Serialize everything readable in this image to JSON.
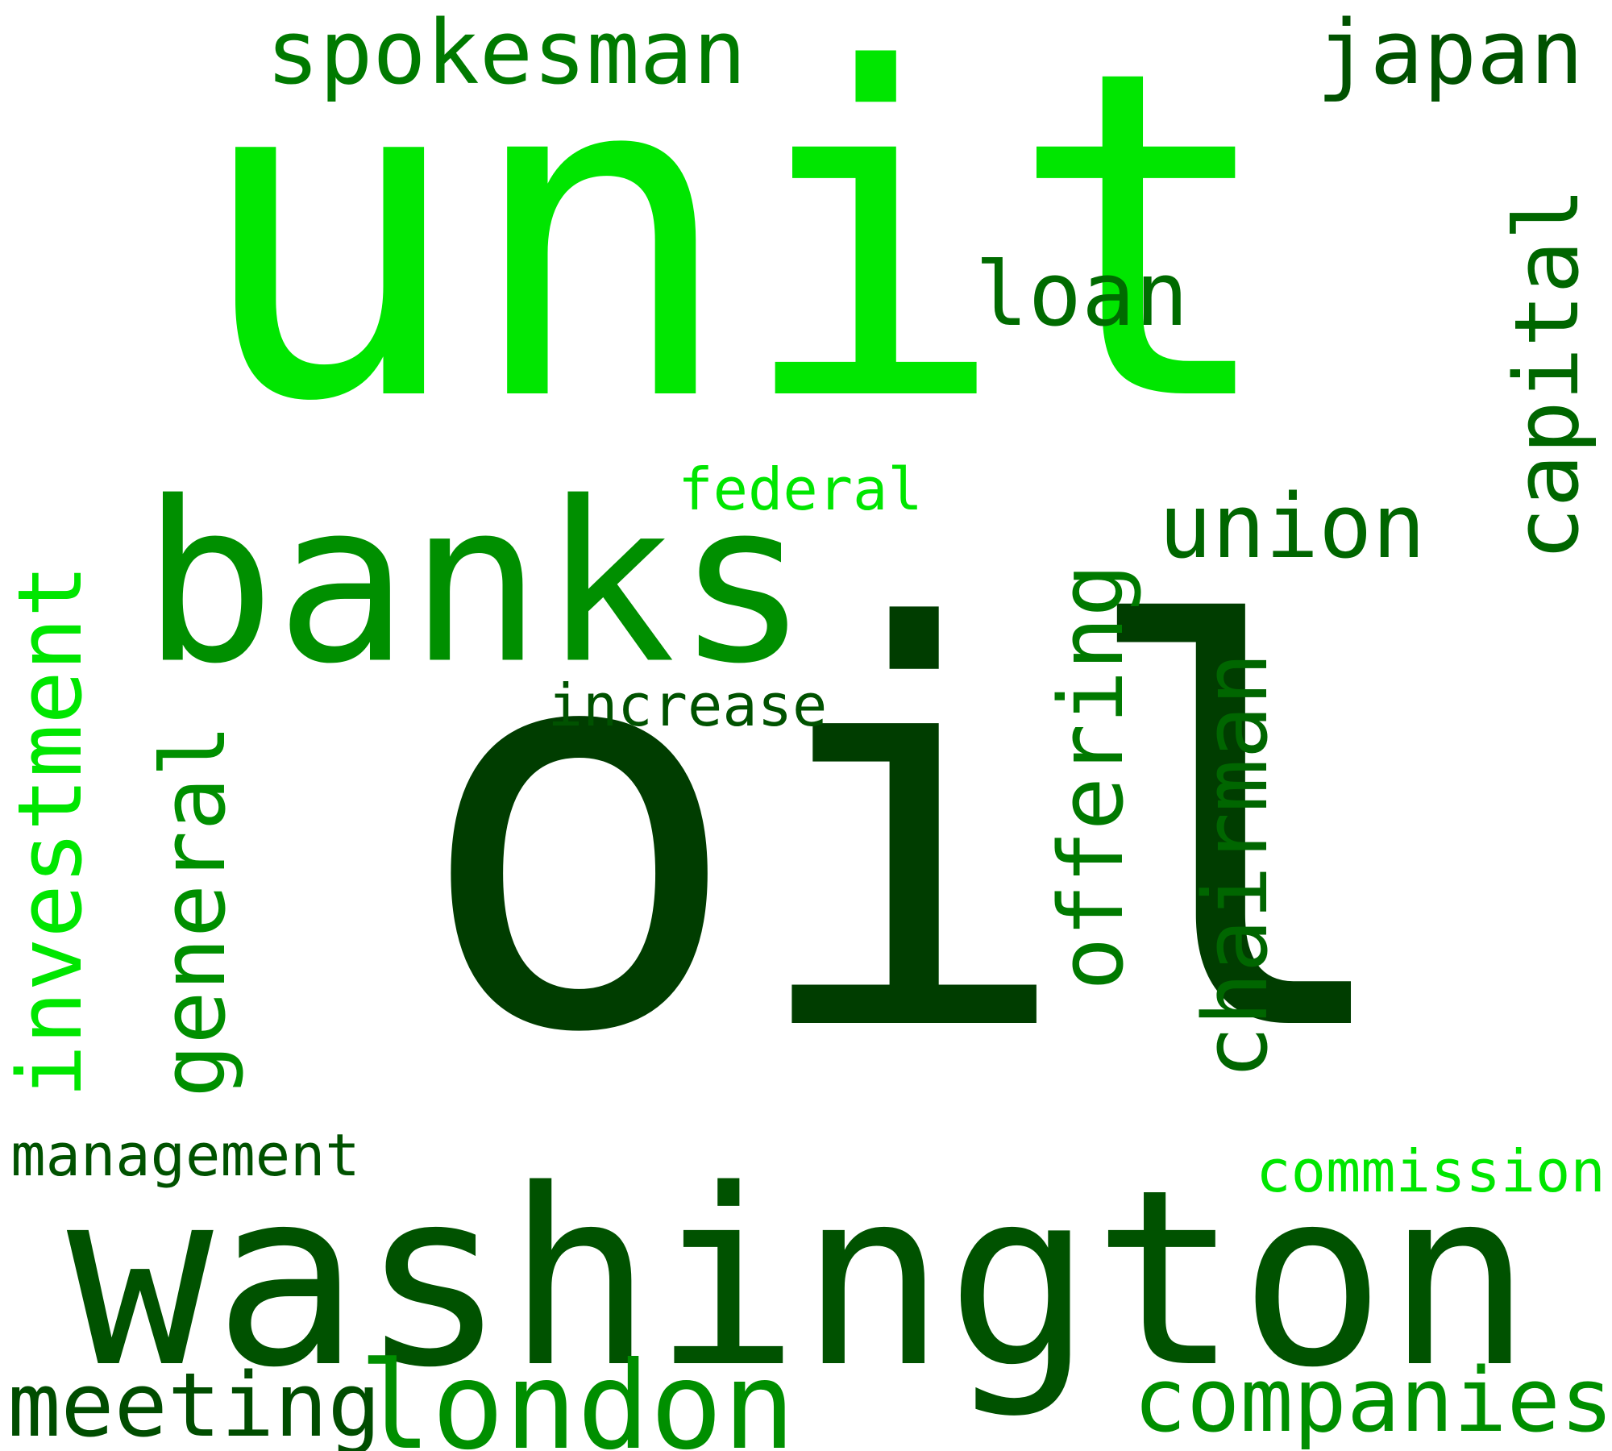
{
  "words": [
    {
      "text": "unit",
      "color": "#00e600",
      "vertical": false
    },
    {
      "text": "oil",
      "color": "#003d00",
      "vertical": false
    },
    {
      "text": "washington",
      "color": "#005200",
      "vertical": false
    },
    {
      "text": "banks",
      "color": "#008f00",
      "vertical": false
    },
    {
      "text": "spokesman",
      "color": "#007a00",
      "vertical": false
    },
    {
      "text": "japan",
      "color": "#005200",
      "vertical": false
    },
    {
      "text": "loan",
      "color": "#006b00",
      "vertical": false
    },
    {
      "text": "capital",
      "color": "#006600",
      "vertical": true
    },
    {
      "text": "federal",
      "color": "#00e600",
      "vertical": false
    },
    {
      "text": "union",
      "color": "#006600",
      "vertical": false
    },
    {
      "text": "offering",
      "color": "#007a00",
      "vertical": true
    },
    {
      "text": "chairman",
      "color": "#006600",
      "vertical": true
    },
    {
      "text": "increase",
      "color": "#005200",
      "vertical": false
    },
    {
      "text": "investment",
      "color": "#00e600",
      "vertical": true
    },
    {
      "text": "general",
      "color": "#008f00",
      "vertical": true
    },
    {
      "text": "management",
      "color": "#005200",
      "vertical": false
    },
    {
      "text": "commission",
      "color": "#00e600",
      "vertical": false
    },
    {
      "text": "meeting",
      "color": "#004d00",
      "vertical": false
    },
    {
      "text": "london",
      "color": "#008f00",
      "vertical": false
    },
    {
      "text": "companies",
      "color": "#008f00",
      "vertical": false
    }
  ]
}
